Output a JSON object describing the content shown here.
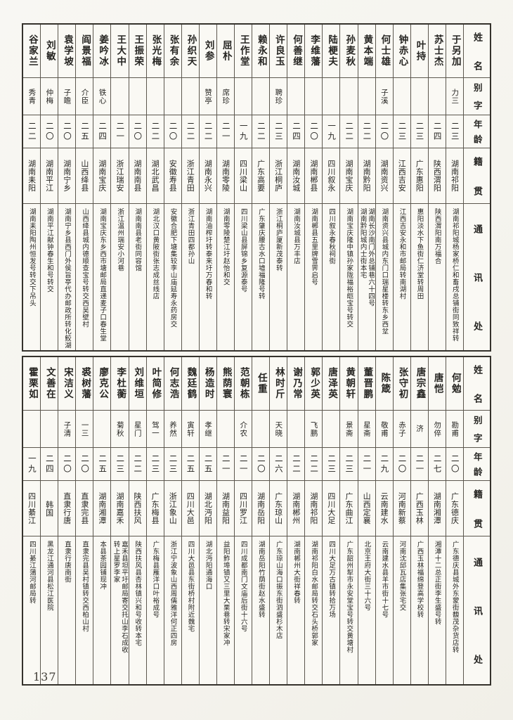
{
  "page": {
    "number": "137"
  },
  "headers": {
    "name": "姓名",
    "alias": "别字",
    "age": "年龄",
    "origin": "籍贯",
    "address": "通讯处"
  },
  "tables": [
    {
      "entries": [
        {
          "name": "于另加",
          "alias": "力三",
          "age": "二三",
          "origin": "湖南祁阳",
          "address": "湖南祁阳城杨家桥仁和畜戌总铺街同致祥转"
        },
        {
          "name": "苏士杰",
          "alias": "",
          "age": "二四",
          "origin": "陕西渭阳",
          "address": "陕西渭阳南万福合"
        },
        {
          "name": "叶持",
          "alias": "",
          "age": "二三",
          "origin": "广东惠阳",
          "address": "惠阳淡水下鱼街仁济堂转周田"
        },
        {
          "name": "钟赤心",
          "alias": "",
          "age": "二三",
          "origin": "江西吉安",
          "address": "江西吉安永和市邮局转南湖村"
        },
        {
          "name": "何士雄",
          "alias": "子溪",
          "age": "二〇",
          "origin": "湖南资兴",
          "address": "湖南资兴县城内东门口瑞星楼转东乡西坌"
        },
        {
          "name": "黄本端",
          "alias": "",
          "age": "二二",
          "origin": "湖南黔阳",
          "address": "湖南长沙南门外总铺巷六十四号\n湖南黔阳城内士街本宅"
        },
        {
          "name": "孙麦秋",
          "alias": "",
          "age": "二二",
          "origin": "湖南宝庆",
          "address": "湖南宝庆隆中镇孙家陇福裕皑宝号转交"
        },
        {
          "name": "陆梗夫",
          "alias": "",
          "age": "一九",
          "origin": "四川叙永",
          "address": "四川叙永春秋祠街"
        },
        {
          "name": "李维藩",
          "alias": "",
          "age": "二〇",
          "origin": "湖南郴县",
          "address": "湖南郴县五里牌雪霁启号"
        },
        {
          "name": "何善继",
          "alias": "",
          "age": "二四",
          "origin": "湖南汝城",
          "address": "湖南汝城县万丰店"
        },
        {
          "name": "许良玉",
          "alias": "聘珍",
          "age": "二三",
          "origin": "浙江桐庐",
          "address": "浙江桐庐厦新茂泰转"
        },
        {
          "name": "赖永和",
          "alias": "",
          "age": "二二",
          "origin": "广东高要",
          "address": "广东肇庆腰古水口墟福隆号转"
        },
        {
          "name": "王作堂",
          "alias": "",
          "age": "一九",
          "origin": "四川梁山",
          "address": "四川梁山县屏锦乡复源泰号"
        },
        {
          "name": "屈朴",
          "alias": "席珍",
          "age": "二一",
          "origin": "湖南零陵",
          "address": "湖南零陵楚江圩赵怡和交"
        },
        {
          "name": "刘参",
          "alias": "赞亭",
          "age": "二二",
          "origin": "湖南永兴",
          "address": "湖南油榨圩转泰来圩万春和转"
        },
        {
          "name": "孙织天",
          "alias": "",
          "age": "二二",
          "origin": "浙江青田",
          "address": "浙江青田四都孙山"
        },
        {
          "name": "张有余",
          "alias": "",
          "age": "二〇",
          "origin": "安徽寿县",
          "address": "安徽合肥下塘集较李山庙延寿永药房交"
        },
        {
          "name": "张光梅",
          "alias": "",
          "age": "二二",
          "origin": "湖北武昌",
          "address": "湖北汉口黄陂街张志成丝线店"
        },
        {
          "name": "王振荣",
          "alias": "",
          "age": "二〇",
          "origin": "湖南南县",
          "address": "湖南南县老街同容馆"
        },
        {
          "name": "王大中",
          "alias": "",
          "age": "二一",
          "origin": "浙江瑞安",
          "address": "浙江温州瑞安小河巷"
        },
        {
          "name": "姜吟冰",
          "alias": "铁心",
          "age": "二四",
          "origin": "湖南宝庆",
          "address": "湖南宝庆东乡西市塘邮局直递麦子口春生堂"
        },
        {
          "name": "阎景福",
          "alias": "介臣",
          "age": "二五",
          "origin": "山西绛县",
          "address": "山西绛县城内德顺查宝号转交西吴壁村"
        },
        {
          "name": "袁学坡",
          "alias": "子瞻",
          "age": "二〇",
          "origin": "湖南宁乡",
          "address": "湖南宁乡县西门外侯旨亭代办邮政所转化鲛湖"
        },
        {
          "name": "刘敏",
          "alias": "仲梅",
          "age": "二〇",
          "origin": "湖南平江",
          "address": "湖南平江献钟春生和号转交"
        },
        {
          "name": "谷家兰",
          "alias": "秀青",
          "age": "二二",
          "origin": "湖南耒阳",
          "address": "湖南耒阳陶州恒发号转交下吊头"
        }
      ]
    },
    {
      "entries": [
        {
          "name": "何勉",
          "alias": "勘甫",
          "age": "二〇",
          "origin": "广东德庆",
          "address": "广东德庆县城外东蒙街馥茂杂货店转"
        },
        {
          "name": "唐恺",
          "alias": "勿倅",
          "age": "二七",
          "origin": "湖南湘潭",
          "address": "湘潭十二总正街李生盛号转"
        },
        {
          "name": "唐宗鑫",
          "alias": "济",
          "age": "二一",
          "origin": "广西玉林",
          "address": "广西玉林福绵登高学校转"
        },
        {
          "name": "张守初",
          "alias": "赤子",
          "age": "二〇",
          "origin": "河南新蔡",
          "address": "河南沈邱瓦店集张宅交"
        },
        {
          "name": "陈箴",
          "alias": "敬甫",
          "age": "二九",
          "origin": "云南建水",
          "address": "云南建水县羊市街十七号"
        },
        {
          "name": "董晋鹏",
          "alias": "星斋",
          "age": "二一",
          "origin": "山西定襄",
          "address": "北京王府大街三十六号"
        },
        {
          "name": "黄朝轩",
          "alias": "景斋",
          "age": "二三",
          "origin": "广东曲江",
          "address": "广东韶州犁市永安堂宝号转交黄塘村"
        },
        {
          "name": "唐泽英",
          "alias": "",
          "age": "二三",
          "origin": "四川大足",
          "address": "四川大足万古镇转拾万场"
        },
        {
          "name": "郭少英",
          "alias": "飞鹏",
          "age": "二二",
          "origin": "湖南祁阳",
          "address": "湖南祁阳白水邮局转交石头桥郭家"
        },
        {
          "name": "谢乃常",
          "alias": "",
          "age": "二二",
          "origin": "湖南郴州",
          "address": "湖南郴州大街祥春转"
        },
        {
          "name": "林时斤",
          "alias": "天晓",
          "age": "二六",
          "origin": "广东琼山",
          "address": "广东琼山海口振东街泗盛杉木店"
        },
        {
          "name": "任重",
          "alias": "",
          "age": "二〇",
          "origin": "湖南岳阳",
          "address": "湖南岳阳竹荫街赵水盛转"
        },
        {
          "name": "范朝栋",
          "alias": "介农",
          "age": "二一",
          "origin": "四川罗江",
          "address": "四川成都南门文庙后街十六号"
        },
        {
          "name": "熊荫寰",
          "alias": "",
          "age": "二一",
          "origin": "湖南益阳",
          "address": "益阳鲊埠镇又三里大栗巷转宋家冲"
        },
        {
          "name": "杨造时",
          "alias": "孝继",
          "age": "二五",
          "origin": "湖北沔阳",
          "address": "湖北沔阳通海口"
        },
        {
          "name": "魏廷鹤",
          "alias": "寅轩",
          "age": "二五",
          "origin": "四川大邑",
          "address": "四川大邑县东街桥村附近魏宅"
        },
        {
          "name": "何志浩",
          "alias": "养然",
          "age": "二三",
          "origin": "浙江象山",
          "address": "浙江宁波象山西周儒雅洋何正四房"
        },
        {
          "name": "叶简修",
          "alias": "驾一",
          "age": "二三",
          "origin": "广东梅县",
          "address": "广东梅县雁洋口叶裕成号"
        },
        {
          "name": "刘维垣",
          "alias": "星门",
          "age": "二二",
          "origin": "陕西扶风",
          "address": "陕西扶风县杏林镇兴和号收转本宅"
        },
        {
          "name": "李杜蘅",
          "alias": "菊秋",
          "age": "二三",
          "origin": "湖南嘉禾",
          "address": "嘉禾县坦平圩邮局寄交托山李石成收\n转上星罗李家"
        },
        {
          "name": "廖克公",
          "alias": "",
          "age": "二五",
          "origin": "湖南湘潭",
          "address": "本县茶园铺现冲"
        },
        {
          "name": "裘树藩",
          "alias": "一三",
          "age": "二〇",
          "origin": "直隶完县",
          "address": "直隶完县吴村镇转交西柏山村"
        },
        {
          "name": "宋洁义",
          "alias": "子清",
          "age": "二〇",
          "origin": "直隶行唐",
          "address": "直隶行唐南街"
        },
        {
          "name": "文善在",
          "alias": "",
          "age": "二四",
          "origin": "韩国",
          "address": "黑龙江通河县松江医院"
        },
        {
          "name": "霍栗如",
          "alias": "",
          "age": "一九",
          "origin": "四川綦江",
          "address": "四川綦江蒲河邮局转"
        }
      ]
    }
  ]
}
